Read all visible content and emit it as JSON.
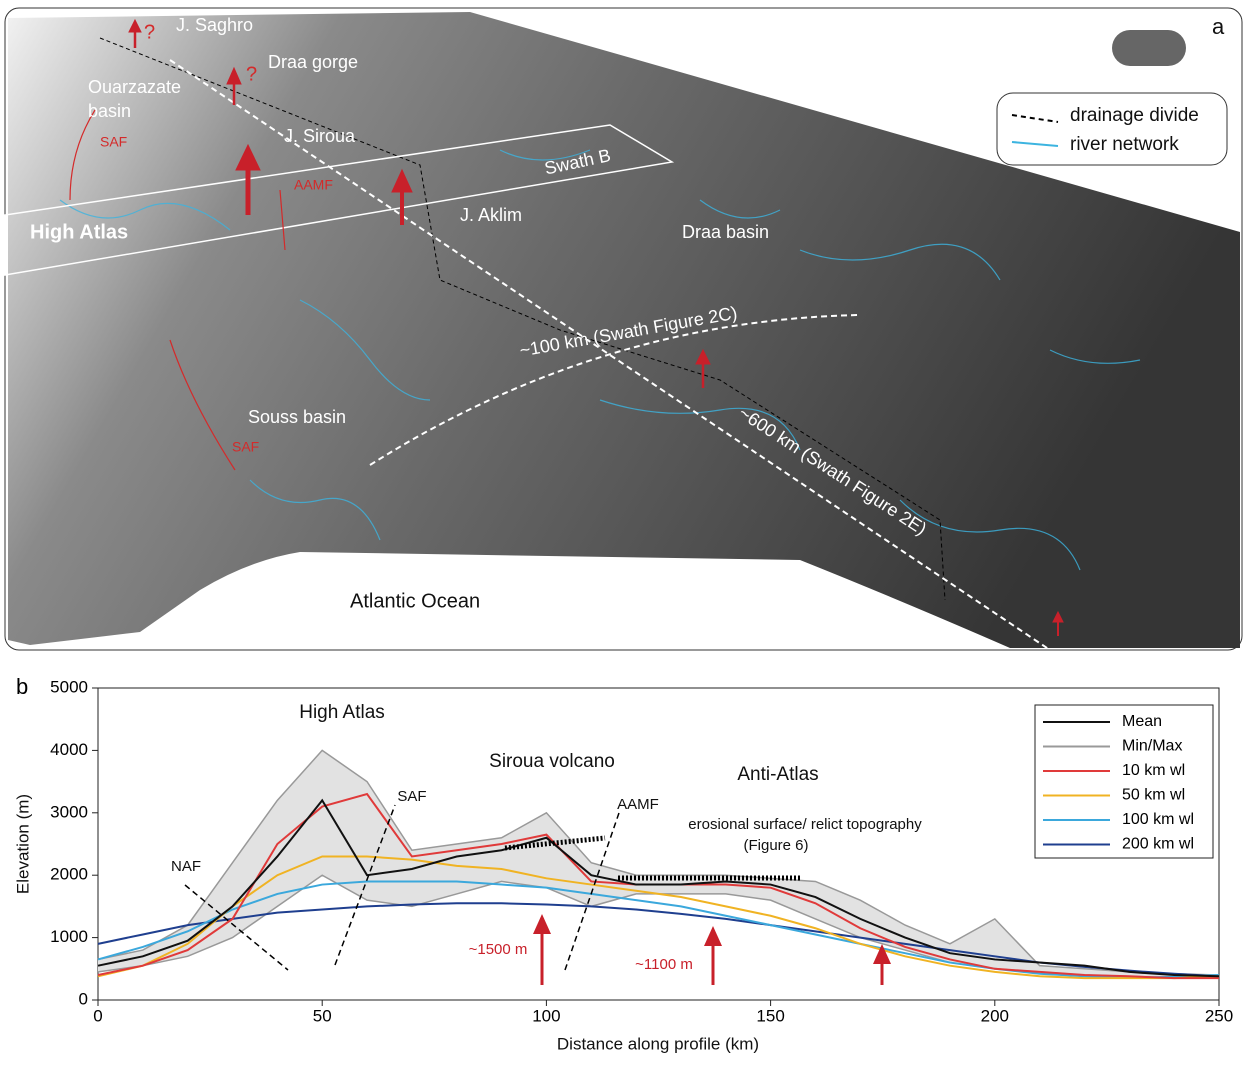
{
  "map": {
    "panel_label": "a",
    "labels": {
      "saghro": "J. Saghro",
      "draa_gorge": "Draa gorge",
      "ouarzazate_1": "Ouarzazate",
      "ouarzazate_2": "basin",
      "saf_north": "SAF",
      "siroua": "J. Siroua",
      "aamf": "AAMF",
      "swath_b": "Swath B",
      "high_atlas": "High Atlas",
      "aklim": "J. Aklim",
      "draa_basin": "Draa basin",
      "swath_2c": "~100 km (Swath Figure 2C)",
      "swath_2e": "~600 km (Swath Figure 2E)",
      "souss": "Souss basin",
      "saf_south": "SAF",
      "atlantic": "Atlantic Ocean",
      "q1": "?",
      "q2": "?"
    },
    "legend": {
      "divide": "drainage divide",
      "rivers": "river network"
    }
  },
  "chart_data": {
    "type": "line",
    "panel_label": "b",
    "x_label": "Distance along profile (km)",
    "y_label": "Elevation (m)",
    "annotations": {
      "high_atlas": "High Atlas",
      "siroua": "Siroua volcano",
      "anti_atlas": "Anti-Atlas",
      "naf": "NAF",
      "saf": "SAF",
      "aamf": "AAMF",
      "erosional": "erosional surface/ relict topography",
      "figure6": "(Figure 6)",
      "uplift1": "~1500 m",
      "uplift2": "~1100 m"
    },
    "x": [
      0,
      10,
      20,
      30,
      40,
      50,
      60,
      70,
      80,
      90,
      100,
      110,
      120,
      130,
      140,
      150,
      160,
      170,
      180,
      190,
      200,
      210,
      220,
      230,
      240,
      250
    ],
    "series": [
      {
        "name": "Mean",
        "color": "#111111",
        "values": [
          550,
          700,
          950,
          1500,
          2300,
          3200,
          2000,
          2100,
          2300,
          2400,
          2600,
          2000,
          1850,
          1850,
          1900,
          1850,
          1650,
          1300,
          1000,
          750,
          650,
          600,
          550,
          450,
          400,
          380
        ]
      },
      {
        "name": "Min/Max",
        "color": "#999999",
        "values": [
          650,
          800,
          1200,
          2200,
          3200,
          4000,
          3500,
          2400,
          2500,
          2600,
          3000,
          2200,
          2000,
          2000,
          2000,
          1950,
          1900,
          1600,
          1200,
          900,
          1300,
          550,
          500,
          450,
          420,
          400
        ],
        "lower": [
          450,
          550,
          700,
          1000,
          1500,
          2000,
          1600,
          1500,
          1700,
          1900,
          1800,
          1500,
          1700,
          1700,
          1700,
          1600,
          1300,
          1000,
          800,
          600,
          500,
          450,
          400,
          380,
          350,
          350
        ]
      },
      {
        "name": "10 km wl",
        "color": "#e03a3a",
        "values": [
          400,
          550,
          800,
          1300,
          2500,
          3100,
          3300,
          2300,
          2400,
          2500,
          2650,
          1900,
          1850,
          1850,
          1850,
          1800,
          1550,
          1150,
          850,
          650,
          500,
          450,
          400,
          380,
          350,
          350
        ]
      },
      {
        "name": "50 km  wl",
        "color": "#f0b323",
        "values": [
          380,
          550,
          900,
          1500,
          2000,
          2300,
          2300,
          2250,
          2150,
          2100,
          1950,
          1850,
          1750,
          1650,
          1500,
          1350,
          1150,
          900,
          700,
          550,
          450,
          380,
          350,
          350,
          350,
          380
        ]
      },
      {
        "name": "100 km wl",
        "color": "#3ba8dc",
        "values": [
          650,
          850,
          1100,
          1450,
          1700,
          1850,
          1900,
          1900,
          1900,
          1850,
          1800,
          1700,
          1600,
          1500,
          1350,
          1200,
          1050,
          900,
          750,
          600,
          500,
          420,
          380,
          360,
          370,
          400
        ]
      },
      {
        "name": "200 km wl",
        "color": "#1f3f8f",
        "values": [
          900,
          1050,
          1200,
          1300,
          1400,
          1450,
          1500,
          1530,
          1550,
          1550,
          1530,
          1500,
          1450,
          1380,
          1300,
          1200,
          1100,
          1000,
          900,
          800,
          700,
          600,
          530,
          470,
          420,
          380
        ]
      }
    ],
    "xlim": [
      0,
      250
    ],
    "xticks": [
      0,
      50,
      100,
      150,
      200,
      250
    ],
    "ylim": [
      0,
      5000
    ],
    "yticks": [
      0,
      1000,
      2000,
      3000,
      4000,
      5000
    ]
  }
}
